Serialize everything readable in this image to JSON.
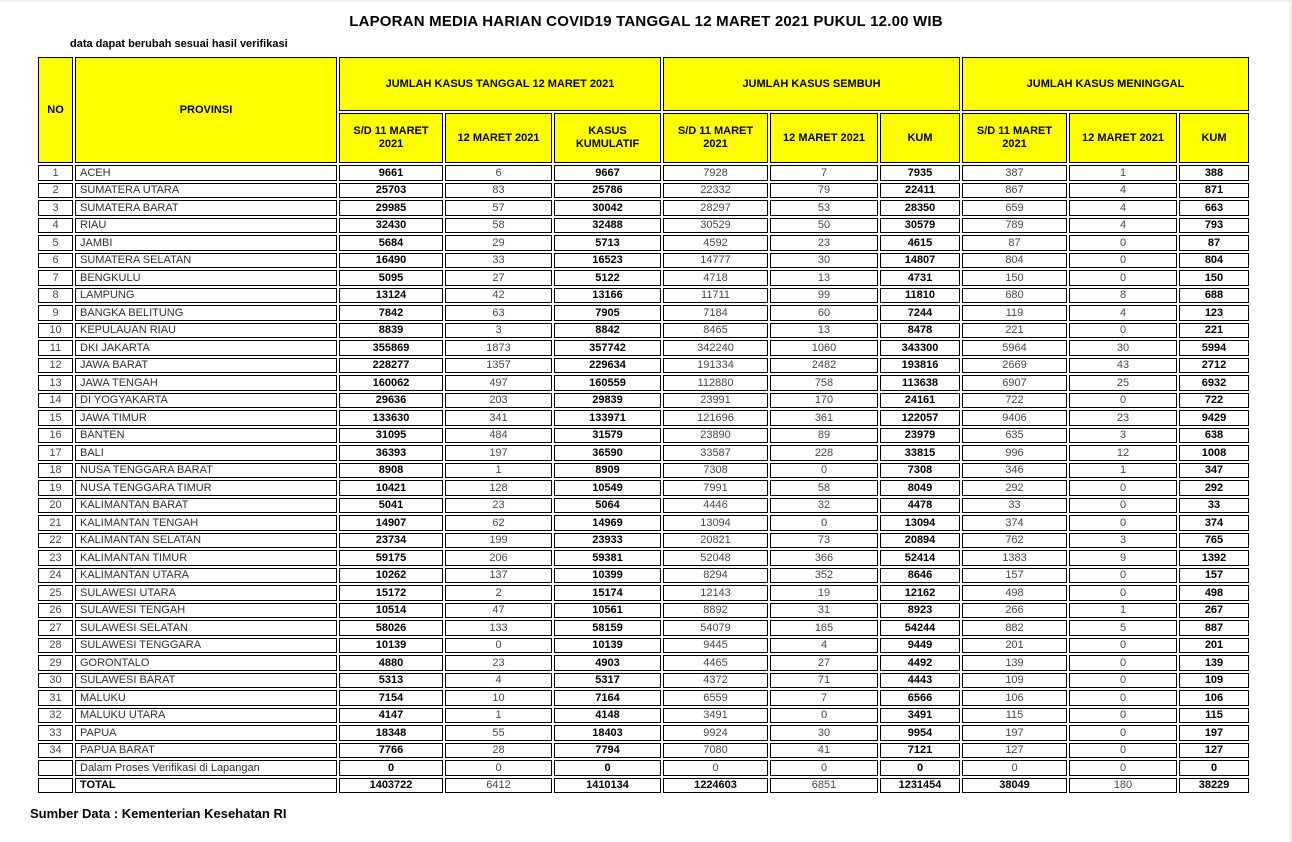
{
  "page": {
    "title": "LAPORAN MEDIA HARIAN COVID19 TANGGAL 12 MARET 2021 PUKUL 12.00 WIB",
    "note": "data dapat berubah sesuai hasil verifikasi",
    "source": "Sumber Data : Kementerian Kesehatan RI"
  },
  "table": {
    "colors": {
      "header_bg": "#FFFF00",
      "border": "#000000"
    },
    "header": {
      "no": "NO",
      "provinsi": "PROVINSI",
      "groups": [
        {
          "label": "JUMLAH KASUS TANGGAL 12 MARET 2021",
          "cols": [
            "S/D 11 MARET 2021",
            "12 MARET 2021",
            "KASUS KUMULATIF"
          ]
        },
        {
          "label": "JUMLAH KASUS SEMBUH",
          "cols": [
            "S/D 11 MARET 2021",
            "12 MARET 2021",
            "KUM"
          ]
        },
        {
          "label": "JUMLAH KASUS MENINGGAL",
          "cols": [
            "S/D 11 MARET 2021",
            "12 MARET 2021",
            "KUM"
          ]
        }
      ]
    },
    "rows": [
      [
        "1",
        "ACEH",
        "9661",
        "6",
        "9667",
        "7928",
        "7",
        "7935",
        "387",
        "1",
        "388"
      ],
      [
        "2",
        "SUMATERA UTARA",
        "25703",
        "83",
        "25786",
        "22332",
        "79",
        "22411",
        "867",
        "4",
        "871"
      ],
      [
        "3",
        "SUMATERA BARAT",
        "29985",
        "57",
        "30042",
        "28297",
        "53",
        "28350",
        "659",
        "4",
        "663"
      ],
      [
        "4",
        "RIAU",
        "32430",
        "58",
        "32488",
        "30529",
        "50",
        "30579",
        "789",
        "4",
        "793"
      ],
      [
        "5",
        "JAMBI",
        "5684",
        "29",
        "5713",
        "4592",
        "23",
        "4615",
        "87",
        "0",
        "87"
      ],
      [
        "6",
        "SUMATERA SELATAN",
        "16490",
        "33",
        "16523",
        "14777",
        "30",
        "14807",
        "804",
        "0",
        "804"
      ],
      [
        "7",
        "BENGKULU",
        "5095",
        "27",
        "5122",
        "4718",
        "13",
        "4731",
        "150",
        "0",
        "150"
      ],
      [
        "8",
        "LAMPUNG",
        "13124",
        "42",
        "13166",
        "11711",
        "99",
        "11810",
        "680",
        "8",
        "688"
      ],
      [
        "9",
        "BANGKA BELITUNG",
        "7842",
        "63",
        "7905",
        "7184",
        "60",
        "7244",
        "119",
        "4",
        "123"
      ],
      [
        "10",
        "KEPULAUAN RIAU",
        "8839",
        "3",
        "8842",
        "8465",
        "13",
        "8478",
        "221",
        "0",
        "221"
      ],
      [
        "11",
        "DKI JAKARTA",
        "355869",
        "1873",
        "357742",
        "342240",
        "1060",
        "343300",
        "5964",
        "30",
        "5994"
      ],
      [
        "12",
        "JAWA BARAT",
        "228277",
        "1357",
        "229634",
        "191334",
        "2482",
        "193816",
        "2669",
        "43",
        "2712"
      ],
      [
        "13",
        "JAWA TENGAH",
        "160062",
        "497",
        "160559",
        "112880",
        "758",
        "113638",
        "6907",
        "25",
        "6932"
      ],
      [
        "14",
        "DI YOGYAKARTA",
        "29636",
        "203",
        "29839",
        "23991",
        "170",
        "24161",
        "722",
        "0",
        "722"
      ],
      [
        "15",
        "JAWA TIMUR",
        "133630",
        "341",
        "133971",
        "121696",
        "361",
        "122057",
        "9406",
        "23",
        "9429"
      ],
      [
        "16",
        "BANTEN",
        "31095",
        "484",
        "31579",
        "23890",
        "89",
        "23979",
        "635",
        "3",
        "638"
      ],
      [
        "17",
        "BALI",
        "36393",
        "197",
        "36590",
        "33587",
        "228",
        "33815",
        "996",
        "12",
        "1008"
      ],
      [
        "18",
        "NUSA TENGGARA BARAT",
        "8908",
        "1",
        "8909",
        "7308",
        "0",
        "7308",
        "346",
        "1",
        "347"
      ],
      [
        "19",
        "NUSA TENGGARA TIMUR",
        "10421",
        "128",
        "10549",
        "7991",
        "58",
        "8049",
        "292",
        "0",
        "292"
      ],
      [
        "20",
        "KALIMANTAN BARAT",
        "5041",
        "23",
        "5064",
        "4446",
        "32",
        "4478",
        "33",
        "0",
        "33"
      ],
      [
        "21",
        "KALIMANTAN TENGAH",
        "14907",
        "62",
        "14969",
        "13094",
        "0",
        "13094",
        "374",
        "0",
        "374"
      ],
      [
        "22",
        "KALIMANTAN SELATAN",
        "23734",
        "199",
        "23933",
        "20821",
        "73",
        "20894",
        "762",
        "3",
        "765"
      ],
      [
        "23",
        "KALIMANTAN TIMUR",
        "59175",
        "206",
        "59381",
        "52048",
        "366",
        "52414",
        "1383",
        "9",
        "1392"
      ],
      [
        "24",
        "KALIMANTAN UTARA",
        "10262",
        "137",
        "10399",
        "8294",
        "352",
        "8646",
        "157",
        "0",
        "157"
      ],
      [
        "25",
        "SULAWESI UTARA",
        "15172",
        "2",
        "15174",
        "12143",
        "19",
        "12162",
        "498",
        "0",
        "498"
      ],
      [
        "26",
        "SULAWESI TENGAH",
        "10514",
        "47",
        "10561",
        "8892",
        "31",
        "8923",
        "266",
        "1",
        "267"
      ],
      [
        "27",
        "SULAWESI SELATAN",
        "58026",
        "133",
        "58159",
        "54079",
        "165",
        "54244",
        "882",
        "5",
        "887"
      ],
      [
        "28",
        "SULAWESI TENGGARA",
        "10139",
        "0",
        "10139",
        "9445",
        "4",
        "9449",
        "201",
        "0",
        "201"
      ],
      [
        "29",
        "GORONTALO",
        "4880",
        "23",
        "4903",
        "4465",
        "27",
        "4492",
        "139",
        "0",
        "139"
      ],
      [
        "30",
        "SULAWESI BARAT",
        "5313",
        "4",
        "5317",
        "4372",
        "71",
        "4443",
        "109",
        "0",
        "109"
      ],
      [
        "31",
        "MALUKU",
        "7154",
        "10",
        "7164",
        "6559",
        "7",
        "6566",
        "106",
        "0",
        "106"
      ],
      [
        "32",
        "MALUKU UTARA",
        "4147",
        "1",
        "4148",
        "3491",
        "0",
        "3491",
        "115",
        "0",
        "115"
      ],
      [
        "33",
        "PAPUA",
        "18348",
        "55",
        "18403",
        "9924",
        "30",
        "9954",
        "197",
        "0",
        "197"
      ],
      [
        "34",
        "PAPUA BARAT",
        "7766",
        "28",
        "7794",
        "7080",
        "41",
        "7121",
        "127",
        "0",
        "127"
      ]
    ],
    "verification_row": {
      "label": "Dalam Proses Verifikasi di Lapangan",
      "values": [
        "0",
        "0",
        "0",
        "0",
        "0",
        "0",
        "0",
        "0",
        "0"
      ]
    },
    "total_row": {
      "label": "TOTAL",
      "values": [
        "1403722",
        "6412",
        "1410134",
        "1224603",
        "6851",
        "1231454",
        "38049",
        "180",
        "38229"
      ]
    }
  }
}
